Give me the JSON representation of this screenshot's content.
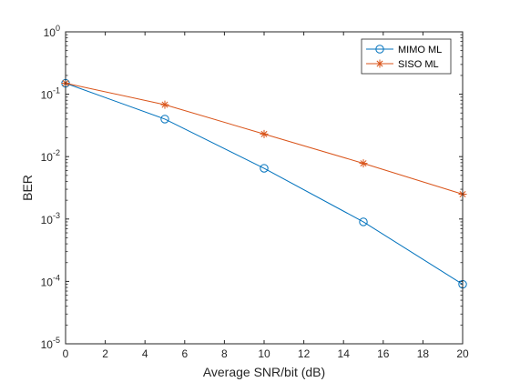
{
  "chart_data": {
    "type": "line",
    "xlabel": "Average SNR/bit (dB)",
    "ylabel": "BER",
    "xlim": [
      0,
      20
    ],
    "ylim": [
      1e-05,
      1
    ],
    "yscale": "log",
    "x_ticks": [
      "0",
      "2",
      "4",
      "6",
      "8",
      "10",
      "12",
      "14",
      "16",
      "18",
      "20"
    ],
    "y_ticks": [
      {
        "base": "10",
        "exp": "0"
      },
      {
        "base": "10",
        "exp": "-1"
      },
      {
        "base": "10",
        "exp": "-2"
      },
      {
        "base": "10",
        "exp": "-3"
      },
      {
        "base": "10",
        "exp": "-4"
      },
      {
        "base": "10",
        "exp": "-5"
      }
    ],
    "grid": false,
    "legend_position": "top-right",
    "series": [
      {
        "name": "MIMO ML",
        "color": "#0072BD",
        "marker": "circle",
        "x": [
          0,
          5,
          10,
          15,
          20
        ],
        "y": [
          0.15,
          0.04,
          0.0065,
          0.0009,
          9e-05
        ]
      },
      {
        "name": "SISO ML",
        "color": "#D95319",
        "marker": "asterisk",
        "x": [
          0,
          5,
          10,
          15,
          20
        ],
        "y": [
          0.15,
          0.068,
          0.023,
          0.0078,
          0.0025
        ]
      }
    ]
  }
}
